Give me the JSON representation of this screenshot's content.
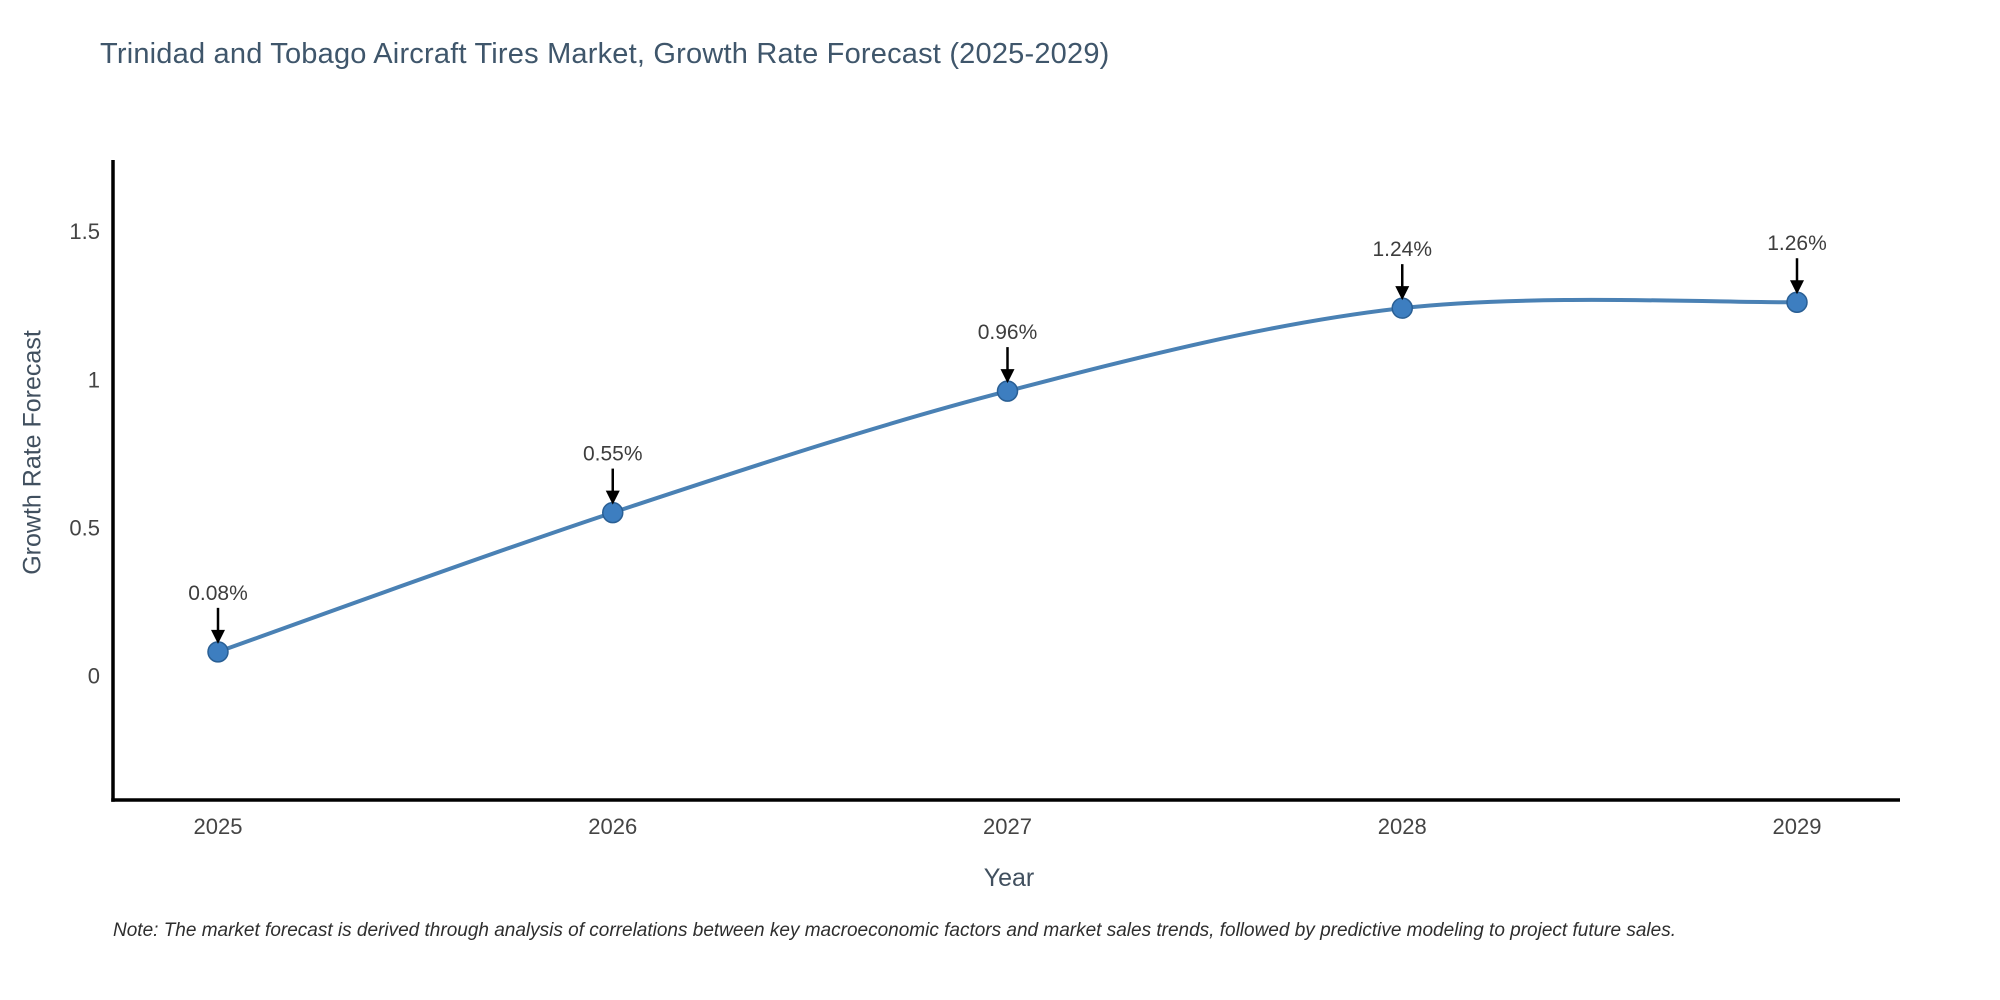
{
  "page": {
    "background": "#ffffff"
  },
  "chart_data": {
    "type": "line",
    "title": "Trinidad and Tobago Aircraft Tires Market, Growth Rate Forecast (2025-2029)",
    "xlabel": "Year",
    "ylabel": "Growth Rate Forecast",
    "categories": [
      "2025",
      "2026",
      "2027",
      "2028",
      "2029"
    ],
    "series": [
      {
        "name": "Growth Rate Forecast",
        "values": [
          0.08,
          0.55,
          0.96,
          1.24,
          1.26
        ]
      }
    ],
    "point_labels": [
      "0.08%",
      "0.55%",
      "0.96%",
      "1.24%",
      "1.26%"
    ],
    "yticks": [
      0,
      0.5,
      1,
      1.5
    ],
    "ytick_labels": [
      "0",
      "0.5",
      "1",
      "1.5"
    ],
    "ylim": [
      -0.42,
      1.74
    ],
    "line_shape": "spline",
    "grid": false,
    "legend_position": "none",
    "colors": {
      "line": "#4a81b4",
      "marker_fill": "#3d7ec0",
      "marker_edge": "#2a5f94",
      "axis_line": "#000000",
      "title_text": "#3f566b",
      "tick_text": "#444444",
      "annotation_text": "#3d3d3d",
      "arrow": "#000000"
    }
  },
  "note": "Note: The market forecast is derived through analysis of correlations between key macroeconomic factors and market sales trends, followed by predictive modeling to project future sales."
}
